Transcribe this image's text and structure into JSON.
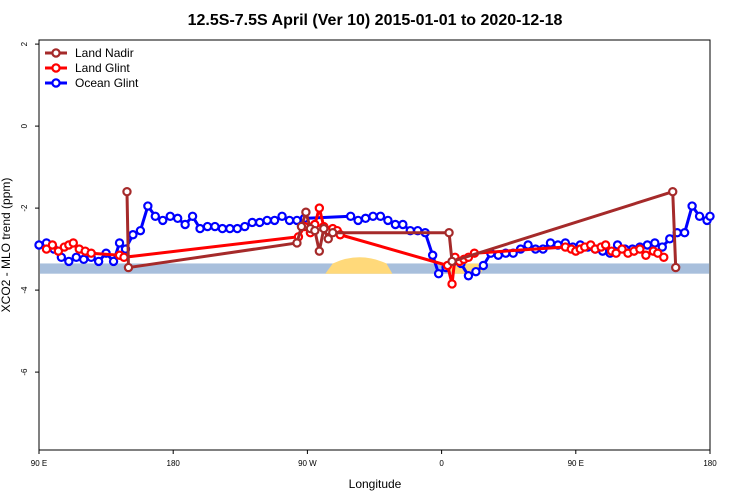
{
  "chart_data": {
    "type": "line",
    "title": "12.5S-7.5S April (Ver 10)   2015-01-01 to 2020-12-18",
    "xlabel": "Longitude",
    "ylabel": "XCO2 - MLO trend (ppm)",
    "x_tick_labels": [
      "90 E",
      "180",
      "90 W",
      "0",
      "90 E",
      "180"
    ],
    "x_tick_values": [
      90,
      180,
      270,
      360,
      450,
      540
    ],
    "y_tick_labels": [
      "2",
      "0",
      "-2",
      "-4",
      "-6"
    ],
    "y_tick_values": [
      2,
      0,
      -2,
      -4,
      -6
    ],
    "xlim": [
      90,
      540
    ],
    "ylim": [
      -7.9,
      2.1
    ],
    "grid": false,
    "legend_position": "top-left",
    "colors": {
      "Land Nadir": "#a52a2a",
      "Land Glint": "#ff0000",
      "Ocean Glint": "#0000ff",
      "band": "#a8bfdc",
      "land_patch": "#ffd97a"
    },
    "series": [
      {
        "name": "Land Nadir",
        "x": [
          149,
          150,
          263,
          266,
          269,
          272,
          275,
          278,
          281,
          284,
          287,
          365,
          367,
          515,
          517
        ],
        "y": [
          -1.6,
          -3.45,
          -2.85,
          -2.45,
          -2.1,
          -2.5,
          -2.55,
          -3.05,
          -2.5,
          -2.75,
          -2.6,
          -2.6,
          -3.3,
          -1.6,
          -3.45
        ]
      },
      {
        "name": "Land Glint",
        "x": [
          95,
          99,
          103,
          107,
          110,
          113,
          117,
          121,
          125,
          144,
          147,
          264,
          268,
          272,
          275,
          278,
          281,
          284,
          287,
          290,
          292,
          364,
          367,
          369,
          372,
          375,
          378,
          382,
          443,
          447,
          450,
          453,
          456,
          460,
          463,
          467,
          470,
          474,
          477,
          481,
          485,
          489,
          493,
          497,
          502,
          505,
          509
        ],
        "y": [
          -3.0,
          -2.9,
          -3.05,
          -2.95,
          -2.9,
          -2.85,
          -3.0,
          -3.05,
          -3.1,
          -3.15,
          -3.2,
          -2.7,
          -2.45,
          -2.6,
          -2.4,
          -2.0,
          -2.45,
          -2.55,
          -2.5,
          -2.55,
          -2.65,
          -3.4,
          -3.85,
          -3.2,
          -3.3,
          -3.25,
          -3.2,
          -3.1,
          -2.95,
          -3.0,
          -3.05,
          -3.0,
          -2.95,
          -2.9,
          -3.0,
          -2.95,
          -2.9,
          -3.05,
          -3.1,
          -3.0,
          -3.1,
          -3.05,
          -3.0,
          -3.15,
          -3.05,
          -3.1,
          -3.2
        ]
      },
      {
        "name": "Ocean Glint",
        "x": [
          90,
          95,
          100,
          105,
          110,
          115,
          120,
          125,
          130,
          135,
          140,
          144,
          148,
          153,
          158,
          163,
          168,
          173,
          178,
          183,
          188,
          193,
          198,
          203,
          208,
          213,
          218,
          223,
          228,
          233,
          238,
          243,
          248,
          253,
          258,
          263,
          268,
          299,
          304,
          309,
          314,
          319,
          324,
          329,
          334,
          339,
          344,
          349,
          354,
          358,
          363,
          368,
          373,
          378,
          383,
          388,
          393,
          398,
          403,
          408,
          413,
          418,
          423,
          428,
          433,
          438,
          443,
          448,
          453,
          458,
          463,
          468,
          473,
          478,
          483,
          488,
          493,
          498,
          503,
          508,
          513,
          518,
          523,
          528,
          533,
          538,
          540
        ],
        "y": [
          -2.9,
          -2.85,
          -3.0,
          -3.2,
          -3.3,
          -3.2,
          -3.25,
          -3.2,
          -3.3,
          -3.1,
          -3.3,
          -2.85,
          -3.0,
          -2.65,
          -2.55,
          -1.95,
          -2.2,
          -2.3,
          -2.2,
          -2.25,
          -2.4,
          -2.2,
          -2.5,
          -2.45,
          -2.45,
          -2.5,
          -2.5,
          -2.5,
          -2.45,
          -2.35,
          -2.35,
          -2.3,
          -2.3,
          -2.2,
          -2.3,
          -2.3,
          -2.25,
          -2.2,
          -2.3,
          -2.25,
          -2.2,
          -2.2,
          -2.3,
          -2.4,
          -2.4,
          -2.55,
          -2.55,
          -2.6,
          -3.15,
          -3.6,
          -3.45,
          -3.3,
          -3.35,
          -3.65,
          -3.55,
          -3.4,
          -3.1,
          -3.15,
          -3.1,
          -3.1,
          -3.0,
          -2.9,
          -3.0,
          -3.0,
          -2.85,
          -2.9,
          -2.85,
          -2.95,
          -2.9,
          -2.95,
          -3.0,
          -3.05,
          -3.1,
          -2.9,
          -3.0,
          -3.0,
          -2.95,
          -2.9,
          -2.85,
          -2.95,
          -2.75,
          -2.6,
          -2.6,
          -1.95,
          -2.2,
          -2.3,
          -2.2
        ]
      }
    ]
  }
}
